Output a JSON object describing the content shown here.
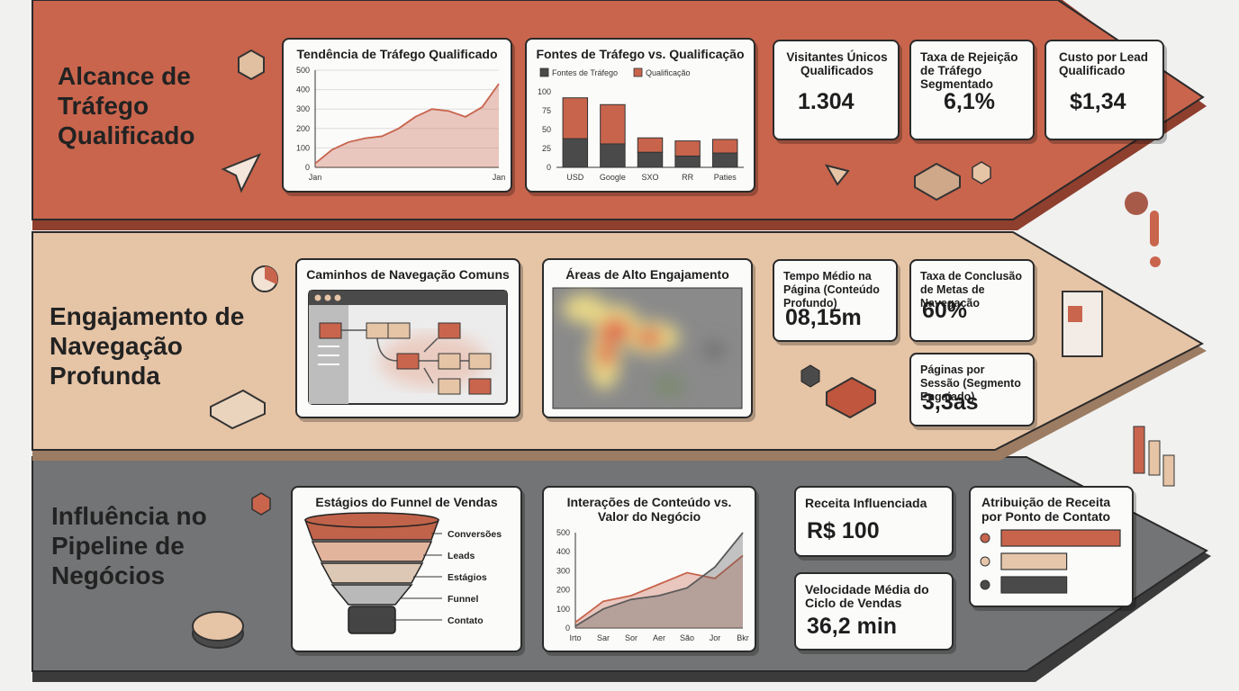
{
  "sections": [
    {
      "title": "Alcance de Tráfego Qualificado",
      "kpis": [
        {
          "label": "Visitantes Únicos Qualificados",
          "value": "1.304"
        },
        {
          "label": "Taxa de Rejeição de Tráfego Segmentado",
          "value": "6,1%"
        },
        {
          "label": "Custo por Lead Qualificado",
          "value": "$1,34"
        }
      ]
    },
    {
      "title": "Engajamento de Navegação Profunda",
      "panels": [
        "Caminhos de Navegação Comuns",
        "Áreas de Alto Engajamento"
      ],
      "kpis": [
        {
          "label": "Tempo Médio na Página (Conteúdo Profundo)",
          "value": "08,15m"
        },
        {
          "label": "Taxa de Conclusão de Metas de Navegação",
          "value": "60%"
        },
        {
          "label": "Páginas por Sessão (Segmento Engajado)",
          "value": "3,3as"
        }
      ]
    },
    {
      "title": "Influência no Pipeline de Negócios",
      "kpis": [
        {
          "label": "Receita Influenciada",
          "value": "R$ 100"
        },
        {
          "label": "Velocidade Média do Ciclo de Vendas",
          "value": "36,2 min"
        }
      ]
    }
  ],
  "chart_data": [
    {
      "type": "area",
      "title": "Tendência de Tráfego Qualificado",
      "categories": [
        "Jan",
        null,
        null,
        null,
        null,
        null,
        null,
        null,
        null,
        null,
        null,
        "Jan"
      ],
      "values": [
        20,
        90,
        130,
        150,
        160,
        200,
        260,
        300,
        290,
        260,
        310,
        430
      ],
      "color": "#c8644c",
      "ylim": [
        0,
        500
      ],
      "yticks": [
        0,
        100,
        200,
        300,
        400,
        500
      ],
      "grid": true
    },
    {
      "type": "stacked-bar",
      "title": "Fontes de Tráfego vs. Qualificação",
      "categories": [
        "USD",
        "Google",
        "SXO",
        "RR",
        "Paties"
      ],
      "series": [
        {
          "name": "Fontes de Tráfego",
          "color": "#4a4a4a",
          "values": [
            38,
            31,
            20,
            15,
            19
          ]
        },
        {
          "name": "Qualificação",
          "color": "#c8644c",
          "values": [
            54,
            52,
            19,
            20,
            18
          ]
        }
      ],
      "ylim": [
        0,
        100
      ],
      "yticks": [
        0,
        25,
        50,
        75,
        100
      ],
      "grid": false
    },
    {
      "type": "funnel",
      "title": "Estágios do Funnel de Vendas",
      "categories": [
        "Conversões",
        "Leads",
        "Estágios",
        "Funnel",
        "Contato"
      ],
      "colors": [
        "#c0634a",
        "#e2b49c",
        "#dcc8b4",
        "#b9b9b9",
        "#444444"
      ]
    },
    {
      "type": "area",
      "title": "Interações de Conteúdo vs. Valor do Negócio",
      "categories": [
        "Irto",
        "Sar",
        "Sor",
        "Aer",
        "São",
        "Jor",
        "Bkr"
      ],
      "series": [
        {
          "color": "#c8644c",
          "values": [
            30,
            140,
            170,
            230,
            290,
            260,
            380
          ]
        },
        {
          "color": "#5a5a5a",
          "values": [
            10,
            100,
            150,
            170,
            210,
            320,
            500
          ]
        }
      ],
      "ylim": [
        0,
        500
      ],
      "yticks": [
        0,
        100,
        200,
        300,
        400,
        500
      ],
      "grid": false
    },
    {
      "type": "hbar",
      "title": "Atribuição de Receita por Ponto de Contato",
      "values": [
        100,
        55,
        55
      ],
      "colors": [
        "#c8644c",
        "#e6c6aa",
        "#4a4a4a"
      ]
    }
  ]
}
